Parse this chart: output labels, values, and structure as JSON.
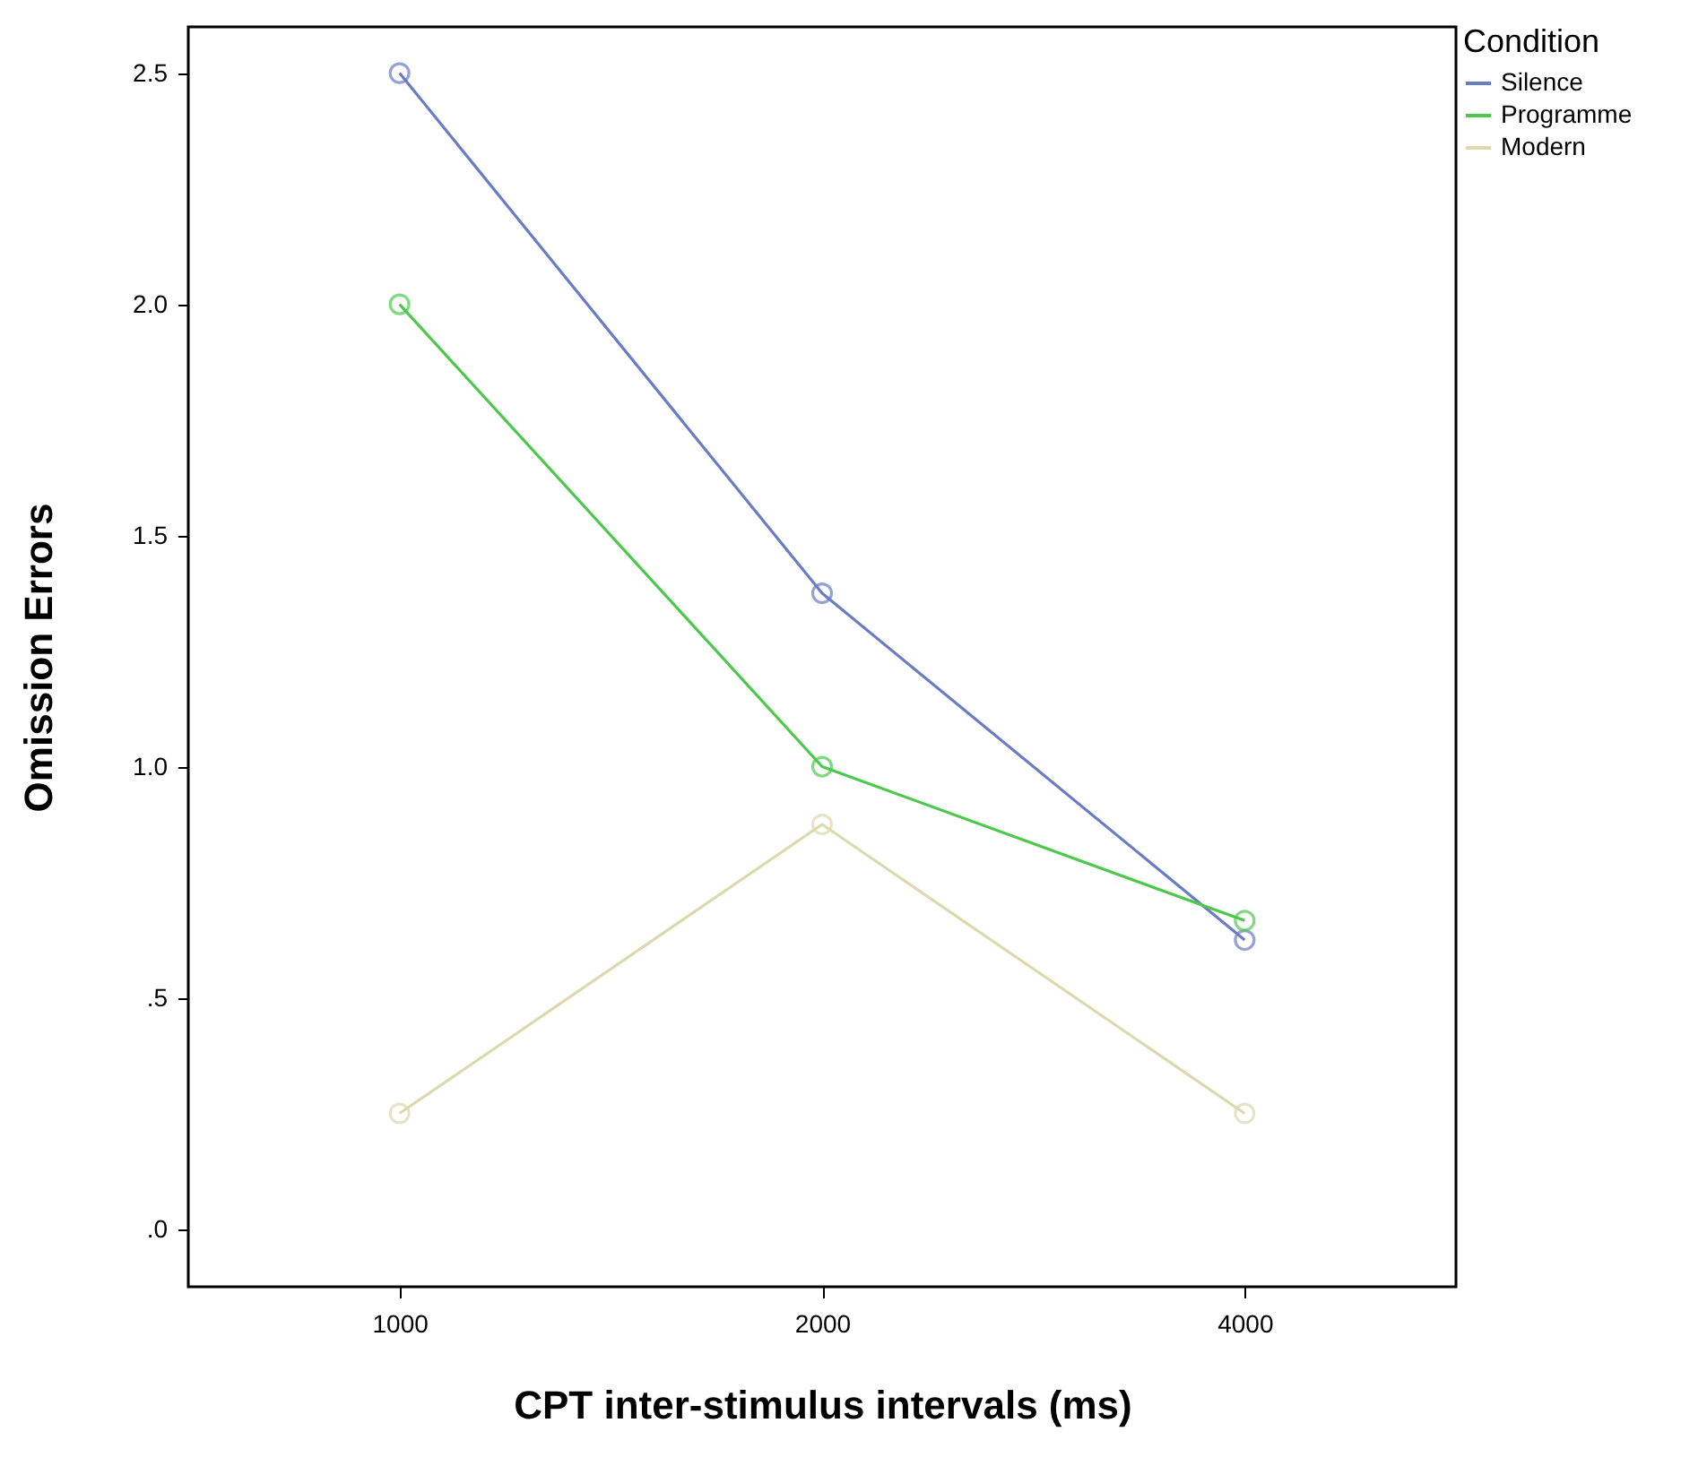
{
  "chart_data": {
    "type": "line",
    "xlabel": "CPT inter-stimulus intervals (ms)",
    "ylabel": "Omission Errors",
    "legend_title": "Condition",
    "categories": [
      "1000",
      "2000",
      "4000"
    ],
    "series": [
      {
        "name": "Silence",
        "color": "#6a7cc6",
        "values": [
          2.5,
          1.375,
          0.625
        ]
      },
      {
        "name": "Programme",
        "color": "#4cc94c",
        "values": [
          2.0,
          1.0,
          0.667
        ]
      },
      {
        "name": "Modern",
        "color": "#ddd8ae",
        "values": [
          0.25,
          0.875,
          0.25
        ]
      }
    ],
    "ylim": [
      -0.125,
      2.6
    ],
    "yticks": [
      {
        "value": 0,
        "label": ".0"
      },
      {
        "value": 0.5,
        "label": ".5"
      },
      {
        "value": 1,
        "label": "1.0"
      },
      {
        "value": 1.5,
        "label": "1.5"
      },
      {
        "value": 2,
        "label": "2.0"
      },
      {
        "value": 2.5,
        "label": "2.5"
      }
    ],
    "grid": false,
    "legend": "top right",
    "marker": "circle",
    "line_style": "solid"
  }
}
